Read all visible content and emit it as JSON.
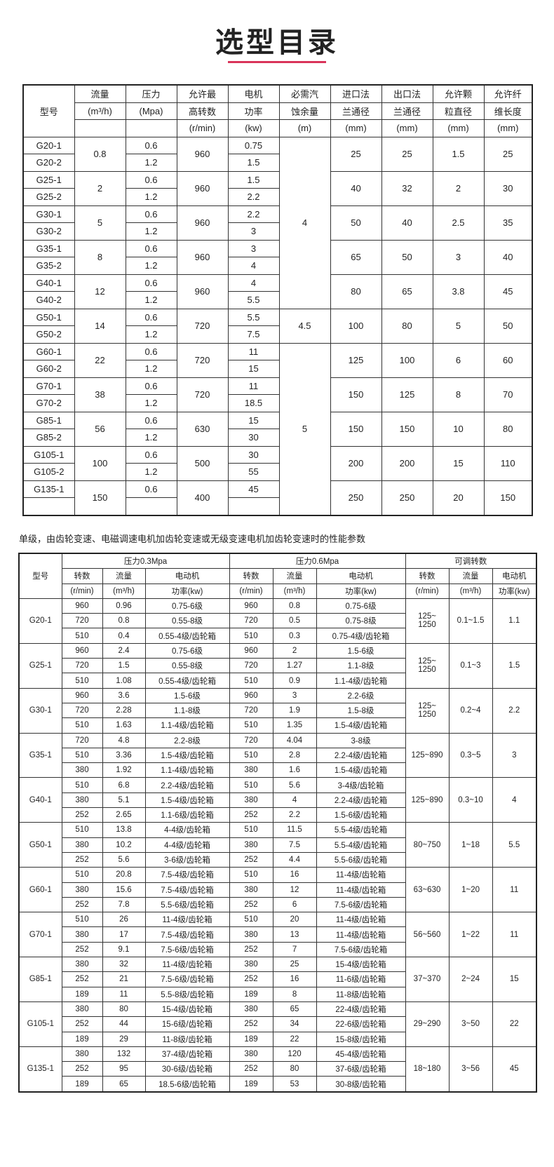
{
  "title": "选型目录",
  "accent_color": "#d9345a",
  "table1": {
    "headers": [
      {
        "lines": [
          "型号"
        ]
      },
      {
        "lines": [
          "流量",
          "(m³/h)",
          ""
        ]
      },
      {
        "lines": [
          "压力",
          "(Mpa)",
          ""
        ]
      },
      {
        "lines": [
          "允许最",
          "高转数",
          "(r/min)"
        ]
      },
      {
        "lines": [
          "电机",
          "功率",
          "(kw)"
        ]
      },
      {
        "lines": [
          "必需汽",
          "蚀余量",
          "(m)"
        ]
      },
      {
        "lines": [
          "进口法",
          "兰通径",
          "(mm)"
        ]
      },
      {
        "lines": [
          "出口法",
          "兰通径",
          "(mm)"
        ]
      },
      {
        "lines": [
          "允许颗",
          "粒直径",
          "(mm)"
        ]
      },
      {
        "lines": [
          "允许纤",
          "维长度",
          "(mm)"
        ]
      }
    ],
    "groups": [
      {
        "models": [
          "G20-1",
          "G20-2"
        ],
        "flow": "0.8",
        "pressure": [
          "0.6",
          "1.2"
        ],
        "speed": "960",
        "power": [
          "0.75",
          "1.5"
        ],
        "inlet": "25",
        "outlet": "25",
        "particle": "1.5",
        "fiber": "25"
      },
      {
        "models": [
          "G25-1",
          "G25-2"
        ],
        "flow": "2",
        "pressure": [
          "0.6",
          "1.2"
        ],
        "speed": "960",
        "power": [
          "1.5",
          "2.2"
        ],
        "inlet": "40",
        "outlet": "32",
        "particle": "2",
        "fiber": "30"
      },
      {
        "models": [
          "G30-1",
          "G30-2"
        ],
        "flow": "5",
        "pressure": [
          "0.6",
          "1.2"
        ],
        "speed": "960",
        "power": [
          "2.2",
          "3"
        ],
        "inlet": "50",
        "outlet": "40",
        "particle": "2.5",
        "fiber": "35"
      },
      {
        "models": [
          "G35-1",
          "G35-2"
        ],
        "flow": "8",
        "pressure": [
          "0.6",
          "1.2"
        ],
        "speed": "960",
        "power": [
          "3",
          "4"
        ],
        "inlet": "65",
        "outlet": "50",
        "particle": "3",
        "fiber": "40"
      },
      {
        "models": [
          "G40-1",
          "G40-2"
        ],
        "flow": "12",
        "pressure": [
          "0.6",
          "1.2"
        ],
        "speed": "960",
        "power": [
          "4",
          "5.5"
        ],
        "inlet": "80",
        "outlet": "65",
        "particle": "3.8",
        "fiber": "45"
      },
      {
        "models": [
          "G50-1",
          "G50-2"
        ],
        "flow": "14",
        "pressure": [
          "0.6",
          "1.2"
        ],
        "speed": "720",
        "power": [
          "5.5",
          "7.5"
        ],
        "inlet": "100",
        "outlet": "80",
        "particle": "5",
        "fiber": "50"
      },
      {
        "models": [
          "G60-1",
          "G60-2"
        ],
        "flow": "22",
        "pressure": [
          "0.6",
          "1.2"
        ],
        "speed": "720",
        "power": [
          "11",
          "15"
        ],
        "inlet": "125",
        "outlet": "100",
        "particle": "6",
        "fiber": "60"
      },
      {
        "models": [
          "G70-1",
          "G70-2"
        ],
        "flow": "38",
        "pressure": [
          "0.6",
          "1.2"
        ],
        "speed": "720",
        "power": [
          "11",
          "18.5"
        ],
        "inlet": "150",
        "outlet": "125",
        "particle": "8",
        "fiber": "70"
      },
      {
        "models": [
          "G85-1",
          "G85-2"
        ],
        "flow": "56",
        "pressure": [
          "0.6",
          "1.2"
        ],
        "speed": "630",
        "power": [
          "15",
          "30"
        ],
        "inlet": "150",
        "outlet": "150",
        "particle": "10",
        "fiber": "80"
      },
      {
        "models": [
          "G105-1",
          "G105-2"
        ],
        "flow": "100",
        "pressure": [
          "0.6",
          "1.2"
        ],
        "speed": "500",
        "power": [
          "30",
          "55"
        ],
        "inlet": "200",
        "outlet": "200",
        "particle": "15",
        "fiber": "110"
      },
      {
        "models": [
          "G135-1",
          ""
        ],
        "flow": "150",
        "pressure": [
          "0.6",
          ""
        ],
        "speed": "400",
        "power": [
          "45",
          ""
        ],
        "inlet": "250",
        "outlet": "250",
        "particle": "20",
        "fiber": "150"
      }
    ],
    "npsh": [
      {
        "value": "4",
        "group_count": 5
      },
      {
        "value": "4.5",
        "group_count": 1
      },
      {
        "value": "5",
        "group_count": 5
      }
    ]
  },
  "subtitle": "单级，由齿轮变速、电磁调速电机加齿轮变速或无级变速电机加齿轮变速时的性能参数",
  "table2": {
    "model_header": "型号",
    "sections": [
      "压力0.3Mpa",
      "压力0.6Mpa",
      "可调转数"
    ],
    "sub_headers": [
      "转数",
      "流量",
      "电动机"
    ],
    "units": [
      "(r/min)",
      "(m³/h)",
      "功率(kw)"
    ],
    "groups": [
      {
        "model": "G20-1",
        "rows": [
          [
            "960",
            "0.96",
            "0.75-6级",
            "960",
            "0.8",
            "0.75-6级"
          ],
          [
            "720",
            "0.8",
            "0.55-8级",
            "720",
            "0.5",
            "0.75-8级"
          ],
          [
            "510",
            "0.4",
            "0.55-4级/齿轮箱",
            "510",
            "0.3",
            "0.75-4级/齿轮箱"
          ]
        ],
        "adj_speed": "125~\n1250",
        "adj_flow": "0.1~1.5",
        "adj_power": "1.1"
      },
      {
        "model": "G25-1",
        "rows": [
          [
            "960",
            "2.4",
            "0.75-6级",
            "960",
            "2",
            "1.5-6级"
          ],
          [
            "720",
            "1.5",
            "0.55-8级",
            "720",
            "1.27",
            "1.1-8级"
          ],
          [
            "510",
            "1.08",
            "0.55-4级/齿轮箱",
            "510",
            "0.9",
            "1.1-4级/齿轮箱"
          ]
        ],
        "adj_speed": "125~\n1250",
        "adj_flow": "0.1~3",
        "adj_power": "1.5"
      },
      {
        "model": "G30-1",
        "rows": [
          [
            "960",
            "3.6",
            "1.5-6级",
            "960",
            "3",
            "2.2-6级"
          ],
          [
            "720",
            "2.28",
            "1.1-8级",
            "720",
            "1.9",
            "1.5-8级"
          ],
          [
            "510",
            "1.63",
            "1.1-4级/齿轮箱",
            "510",
            "1.35",
            "1.5-4级/齿轮箱"
          ]
        ],
        "adj_speed": "125~\n1250",
        "adj_flow": "0.2~4",
        "adj_power": "2.2"
      },
      {
        "model": "G35-1",
        "rows": [
          [
            "720",
            "4.8",
            "2.2-8级",
            "720",
            "4.04",
            "3-8级"
          ],
          [
            "510",
            "3.36",
            "1.5-4级/齿轮箱",
            "510",
            "2.8",
            "2.2-4级/齿轮箱"
          ],
          [
            "380",
            "1.92",
            "1.1-4级/齿轮箱",
            "380",
            "1.6",
            "1.5-4级/齿轮箱"
          ]
        ],
        "adj_speed": "125~890",
        "adj_flow": "0.3~5",
        "adj_power": "3"
      },
      {
        "model": "G40-1",
        "rows": [
          [
            "510",
            "6.8",
            "2.2-4级/齿轮箱",
            "510",
            "5.6",
            "3-4级/齿轮箱"
          ],
          [
            "380",
            "5.1",
            "1.5-4级/齿轮箱",
            "380",
            "4",
            "2.2-4级/齿轮箱"
          ],
          [
            "252",
            "2.65",
            "1.1-6级/齿轮箱",
            "252",
            "2.2",
            "1.5-6级/齿轮箱"
          ]
        ],
        "adj_speed": "125~890",
        "adj_flow": "0.3~10",
        "adj_power": "4"
      },
      {
        "model": "G50-1",
        "rows": [
          [
            "510",
            "13.8",
            "4-4级/齿轮箱",
            "510",
            "11.5",
            "5.5-4级/齿轮箱"
          ],
          [
            "380",
            "10.2",
            "4-4级/齿轮箱",
            "380",
            "7.5",
            "5.5-4级/齿轮箱"
          ],
          [
            "252",
            "5.6",
            "3-6级/齿轮箱",
            "252",
            "4.4",
            "5.5-6级/齿轮箱"
          ]
        ],
        "adj_speed": "80~750",
        "adj_flow": "1~18",
        "adj_power": "5.5"
      },
      {
        "model": "G60-1",
        "rows": [
          [
            "510",
            "20.8",
            "7.5-4级/齿轮箱",
            "510",
            "16",
            "11-4级/齿轮箱"
          ],
          [
            "380",
            "15.6",
            "7.5-4级/齿轮箱",
            "380",
            "12",
            "11-4级/齿轮箱"
          ],
          [
            "252",
            "7.8",
            "5.5-6级/齿轮箱",
            "252",
            "6",
            "7.5-6级/齿轮箱"
          ]
        ],
        "adj_speed": "63~630",
        "adj_flow": "1~20",
        "adj_power": "11"
      },
      {
        "model": "G70-1",
        "rows": [
          [
            "510",
            "26",
            "11-4级/齿轮箱",
            "510",
            "20",
            "11-4级/齿轮箱"
          ],
          [
            "380",
            "17",
            "7.5-4级/齿轮箱",
            "380",
            "13",
            "11-4级/齿轮箱"
          ],
          [
            "252",
            "9.1",
            "7.5-6级/齿轮箱",
            "252",
            "7",
            "7.5-6级/齿轮箱"
          ]
        ],
        "adj_speed": "56~560",
        "adj_flow": "1~22",
        "adj_power": "11"
      },
      {
        "model": "G85-1",
        "rows": [
          [
            "380",
            "32",
            "11-4级/齿轮箱",
            "380",
            "25",
            "15-4级/齿轮箱"
          ],
          [
            "252",
            "21",
            "7.5-6级/齿轮箱",
            "252",
            "16",
            "11-6级/齿轮箱"
          ],
          [
            "189",
            "11",
            "5.5-8级/齿轮箱",
            "189",
            "8",
            "11-8级/齿轮箱"
          ]
        ],
        "adj_speed": "37~370",
        "adj_flow": "2~24",
        "adj_power": "15"
      },
      {
        "model": "G105-1",
        "rows": [
          [
            "380",
            "80",
            "15-4级/齿轮箱",
            "380",
            "65",
            "22-4级/齿轮箱"
          ],
          [
            "252",
            "44",
            "15-6级/齿轮箱",
            "252",
            "34",
            "22-6级/齿轮箱"
          ],
          [
            "189",
            "29",
            "11-8级/齿轮箱",
            "189",
            "22",
            "15-8级/齿轮箱"
          ]
        ],
        "adj_speed": "29~290",
        "adj_flow": "3~50",
        "adj_power": "22"
      },
      {
        "model": "G135-1",
        "rows": [
          [
            "380",
            "132",
            "37-4级/齿轮箱",
            "380",
            "120",
            "45-4级/齿轮箱"
          ],
          [
            "252",
            "95",
            "30-6级/齿轮箱",
            "252",
            "80",
            "37-6级/齿轮箱"
          ],
          [
            "189",
            "65",
            "18.5-6级/齿轮箱",
            "189",
            "53",
            "30-8级/齿轮箱"
          ]
        ],
        "adj_speed": "18~180",
        "adj_flow": "3~56",
        "adj_power": "45"
      }
    ]
  }
}
